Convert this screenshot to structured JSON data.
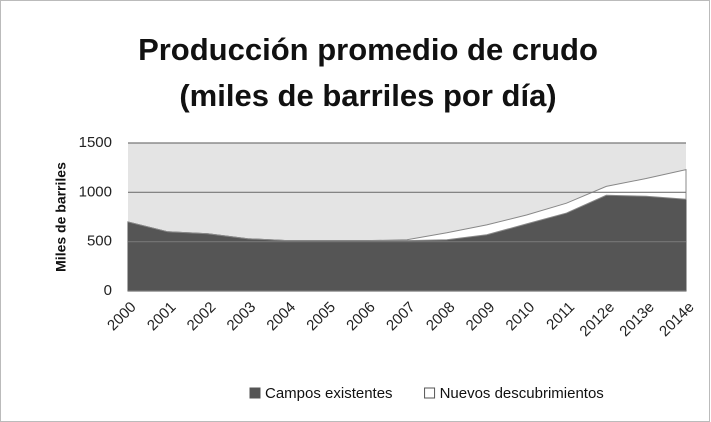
{
  "chart_data": {
    "type": "area",
    "stacked": true,
    "title": "Producción promedio de crudo",
    "subtitle": "(miles de barriles por día)",
    "y_label": "Miles de barriles",
    "categories": [
      "2000",
      "2001",
      "2002",
      "2003",
      "2004",
      "2005",
      "2006",
      "2007",
      "2008",
      "2009",
      "2010",
      "2011",
      "2012e",
      "2013e",
      "2014e"
    ],
    "series": [
      {
        "name": "Campos existentes",
        "color": "#555555",
        "values": [
          700,
          600,
          580,
          530,
          510,
          510,
          510,
          510,
          520,
          570,
          680,
          790,
          970,
          960,
          930
        ]
      },
      {
        "name": "Nuevos descubrimientos",
        "color": "#ffffff",
        "values": [
          0,
          0,
          0,
          0,
          0,
          0,
          0,
          10,
          70,
          100,
          90,
          100,
          90,
          180,
          300
        ]
      }
    ],
    "ylim": [
      0,
      1500
    ],
    "yticks": [
      0,
      500,
      1000,
      1500
    ],
    "grid": true,
    "legend": "bottom"
  }
}
